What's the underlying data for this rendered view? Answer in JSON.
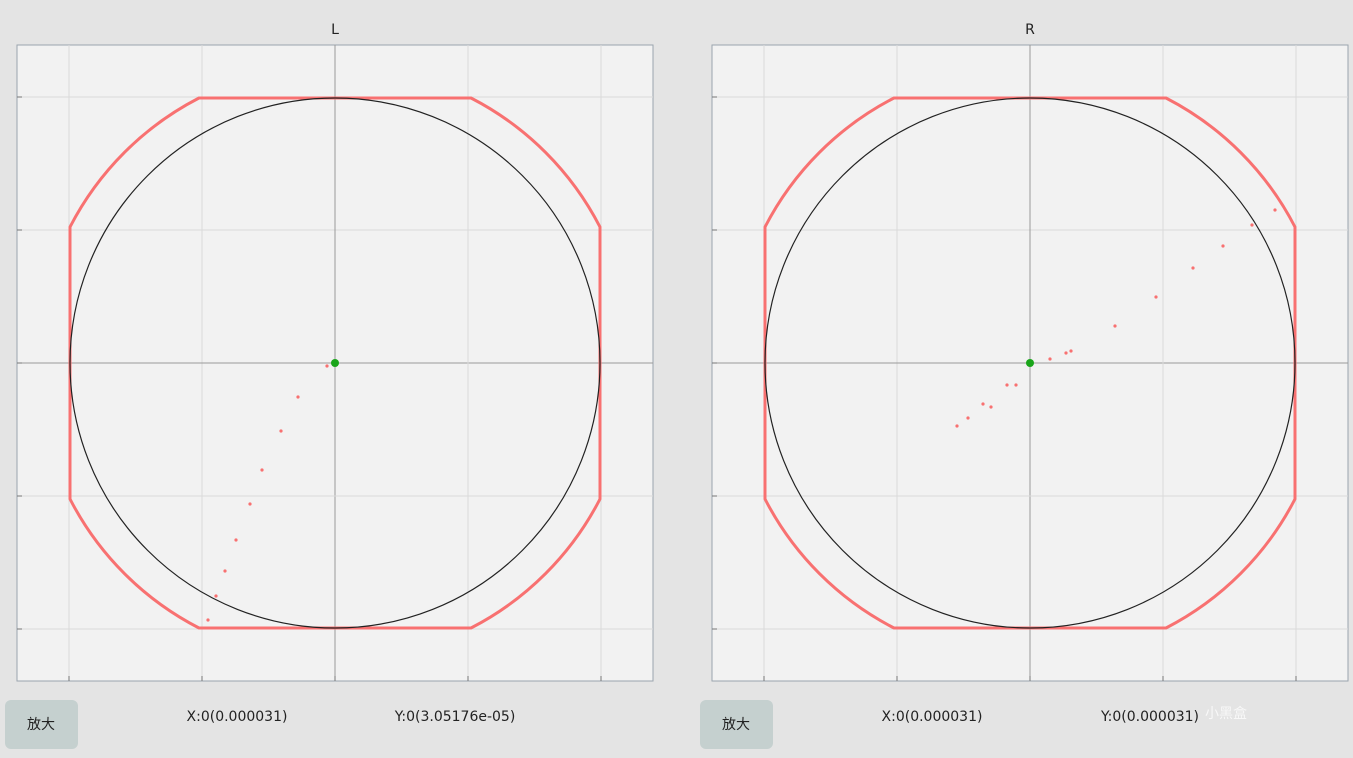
{
  "panels": [
    {
      "title": "L",
      "button": "放大",
      "x_readout": "X:0(0.000031)",
      "y_readout": "Y:0(3.05176e-05)"
    },
    {
      "title": "R",
      "button": "放大",
      "x_readout": "X:0(0.000031)",
      "y_readout": "Y:0(0.000031)"
    }
  ],
  "watermark": "小黑盒"
}
